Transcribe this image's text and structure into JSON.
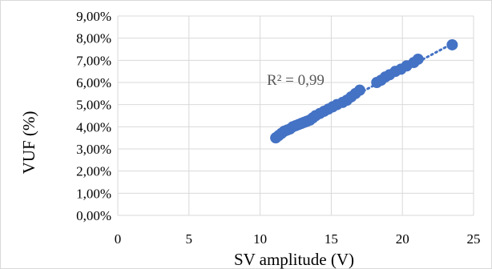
{
  "chart_data": {
    "type": "scatter",
    "xlabel": "SV amplitude (V)",
    "ylabel": "VUF (%)",
    "xlim": [
      0,
      25
    ],
    "ylim": [
      0,
      9
    ],
    "x_ticks": [
      "0",
      "5",
      "10",
      "15",
      "20",
      "25"
    ],
    "y_ticks": [
      "0,00%",
      "1,00%",
      "2,00%",
      "3,00%",
      "4,00%",
      "5,00%",
      "6,00%",
      "7,00%",
      "8,00%",
      "9,00%"
    ],
    "grid": "major gridlines on both axes",
    "legend": "none",
    "annotation": "R² = 0,99",
    "marker_color": "#4472C4",
    "trendline": {
      "type": "linear",
      "style": "dotted",
      "color": "#4472C4",
      "x": [
        11,
        23.5
      ],
      "y": [
        3.47,
        7.75
      ]
    },
    "series": [
      {
        "x": [
          11.1,
          11.3,
          11.5,
          11.7,
          11.9,
          12.1,
          12.3,
          12.5,
          12.7,
          12.9,
          13.1,
          13.3,
          13.5,
          13.7,
          13.9,
          14.2,
          14.5,
          14.8,
          15.1,
          15.4,
          15.8,
          16.1,
          16.4,
          16.7,
          17.0,
          18.2,
          18.5,
          18.8,
          19.1,
          19.5,
          19.9,
          20.3,
          20.8,
          21.1,
          23.5
        ],
        "y": [
          3.5,
          3.6,
          3.7,
          3.8,
          3.85,
          3.9,
          4.0,
          4.05,
          4.1,
          4.15,
          4.2,
          4.25,
          4.3,
          4.4,
          4.5,
          4.6,
          4.7,
          4.8,
          4.9,
          5.0,
          5.1,
          5.2,
          5.35,
          5.5,
          5.65,
          6.0,
          6.1,
          6.25,
          6.35,
          6.5,
          6.6,
          6.75,
          6.9,
          7.05,
          7.7
        ]
      }
    ]
  }
}
